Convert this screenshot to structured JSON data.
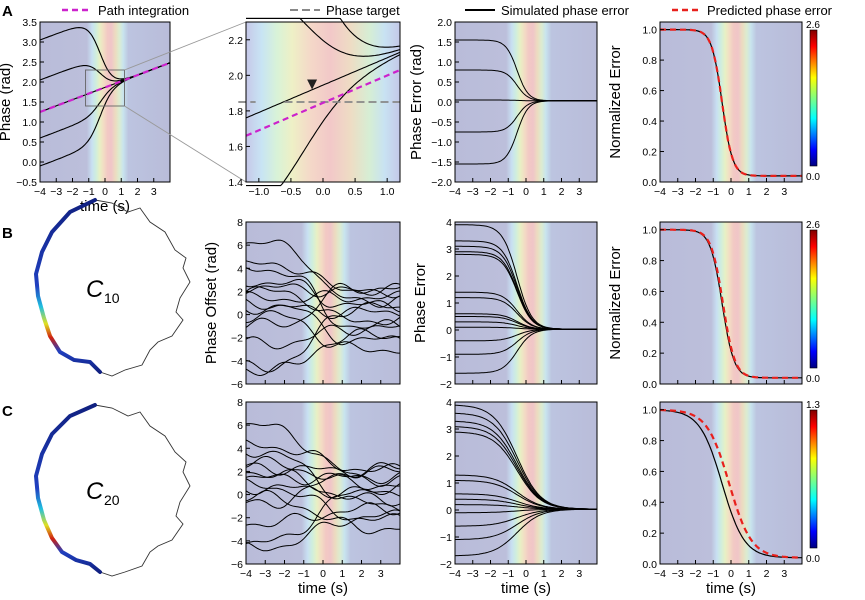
{
  "figure": {
    "panel_labels": [
      "A",
      "B",
      "C"
    ],
    "legend": {
      "path_integration": "Path integration",
      "phase_target": "Phase target",
      "simulated_phase_error": "Simulated phase error",
      "predicted_phase_error": "Predicted phase error"
    },
    "circle_labels": [
      "C",
      "10",
      "C",
      "20"
    ],
    "colors": {
      "path_integration": "#cc22cc",
      "phase_target": "#888888",
      "simulated": "#000000",
      "predicted": "#e8201c",
      "background": "#b9bcd9"
    }
  },
  "chart_data": [
    {
      "type": "line",
      "panel": "A1",
      "xlabel": "time (s)",
      "ylabel": "Phase (rad)",
      "xlim": [
        -4,
        4
      ],
      "ylim": [
        -0.5,
        3.5
      ],
      "xticks": [
        "−4",
        "−3",
        "−2",
        "−1",
        "0",
        "1",
        "2",
        "3"
      ],
      "yticks": [
        "−0.5",
        "0.0",
        "0.5",
        "1.0",
        "1.5",
        "2.0",
        "2.5",
        "3.0",
        "3.5"
      ],
      "series": [
        {
          "name": "Path integration",
          "style": "dashed",
          "x": [
            -4,
            4
          ],
          "y": [
            1.25,
            2.48
          ]
        },
        {
          "name": "trajectory",
          "start": 3.05
        },
        {
          "name": "trajectory",
          "start": 2.05
        },
        {
          "name": "trajectory",
          "start": 1.25
        },
        {
          "name": "trajectory",
          "start": 0.6
        },
        {
          "name": "trajectory",
          "start": -0.1
        }
      ]
    },
    {
      "type": "line",
      "panel": "A2",
      "xlim": [
        -1.2,
        1.2
      ],
      "ylim": [
        1.4,
        2.3
      ],
      "xticks": [
        "−1.0",
        "−0.5",
        "0.0",
        "0.5",
        "1.0"
      ],
      "yticks": [
        "1.4",
        "1.6",
        "1.8",
        "2.0",
        "2.2"
      ],
      "series": [
        {
          "name": "Path integration",
          "style": "dashed",
          "x": [
            -1.2,
            1.2
          ],
          "y": [
            1.66,
            2.03
          ]
        },
        {
          "name": "Phase target",
          "style": "dashed",
          "y": 1.85
        }
      ]
    },
    {
      "type": "line",
      "panel": "A3",
      "ylabel": "Phase Error (rad)",
      "xlim": [
        -4,
        4
      ],
      "ylim": [
        -2.0,
        2.0
      ],
      "xticks": [
        "−4",
        "−3",
        "−2",
        "−1",
        "0",
        "1",
        "2",
        "3"
      ],
      "yticks": [
        "−2.0",
        "−1.5",
        "−1.0",
        "−0.5",
        "0.0",
        "0.5",
        "1.0",
        "1.5",
        "2.0"
      ],
      "start_values": [
        1.55,
        0.8,
        0.05,
        -0.75,
        -1.55
      ]
    },
    {
      "type": "line",
      "panel": "A4",
      "ylabel": "Normalized Error",
      "xlim": [
        -4,
        4
      ],
      "ylim": [
        0.0,
        1.05
      ],
      "xticks": [
        "−4",
        "−3",
        "−2",
        "−1",
        "0",
        "1",
        "2",
        "3"
      ],
      "yticks": [
        "0.0",
        "0.2",
        "0.4",
        "0.6",
        "0.8",
        "1.0"
      ],
      "colorbar": [
        "2.6",
        "0.0"
      ],
      "plateau": 0.04
    },
    {
      "type": "line",
      "panel": "B2",
      "ylabel": "Phase Offset (rad)",
      "xlim": [
        -4,
        4
      ],
      "ylim": [
        -6,
        8
      ],
      "yticks": [
        "−6",
        "−4",
        "−2",
        "0",
        "2",
        "4",
        "6",
        "8"
      ]
    },
    {
      "type": "line",
      "panel": "B3",
      "ylabel": "Phase Error",
      "xlim": [
        -4,
        4
      ],
      "ylim": [
        -2,
        4
      ],
      "yticks": [
        "−2",
        "−1",
        "0",
        "1",
        "2",
        "3",
        "4"
      ],
      "start_values": [
        3.9,
        3.3,
        3.1,
        2.9,
        2.8,
        1.4,
        1.2,
        0.6,
        0.5,
        0.3,
        0.1,
        -0.4,
        -0.9,
        -1.6
      ]
    },
    {
      "type": "line",
      "panel": "B4",
      "ylabel": "Normalized Error",
      "xlim": [
        -4,
        4
      ],
      "ylim": [
        0.0,
        1.05
      ],
      "yticks": [
        "0.0",
        "0.2",
        "0.4",
        "0.6",
        "0.8",
        "1.0"
      ],
      "colorbar": [
        "2.6",
        "0.0"
      ],
      "plateau": 0.04
    },
    {
      "type": "line",
      "panel": "C2",
      "xlabel": "time (s)",
      "xlim": [
        -4,
        4
      ],
      "ylim": [
        -6,
        8
      ],
      "xticks": [
        "−4",
        "−3",
        "−2",
        "−1",
        "0",
        "1",
        "2",
        "3"
      ],
      "yticks": [
        "−6",
        "−4",
        "−2",
        "0",
        "2",
        "4",
        "6",
        "8"
      ]
    },
    {
      "type": "line",
      "panel": "C3",
      "xlabel": "time (s)",
      "xlim": [
        -4,
        4
      ],
      "ylim": [
        -2,
        4
      ],
      "xticks": [
        "−4",
        "−3",
        "−2",
        "−1",
        "0",
        "1",
        "2",
        "3"
      ],
      "yticks": [
        "−2",
        "−1",
        "0",
        "1",
        "2",
        "3",
        "4"
      ],
      "start_values": [
        3.9,
        3.6,
        3.3,
        3.1,
        2.9,
        1.3,
        1.1,
        0.6,
        0.4,
        0.2,
        -0.1,
        -0.6,
        -1.1,
        -1.7
      ]
    },
    {
      "type": "line",
      "panel": "C4",
      "xlabel": "time (s)",
      "xlim": [
        -4,
        4
      ],
      "ylim": [
        0.0,
        1.05
      ],
      "xticks": [
        "−4",
        "−3",
        "−2",
        "−1",
        "0",
        "1",
        "2",
        "3"
      ],
      "yticks": [
        "0.0",
        "0.2",
        "0.4",
        "0.6",
        "0.8",
        "1.0"
      ],
      "colorbar": [
        "1.3",
        "0.0"
      ],
      "plateau": 0.04
    }
  ]
}
